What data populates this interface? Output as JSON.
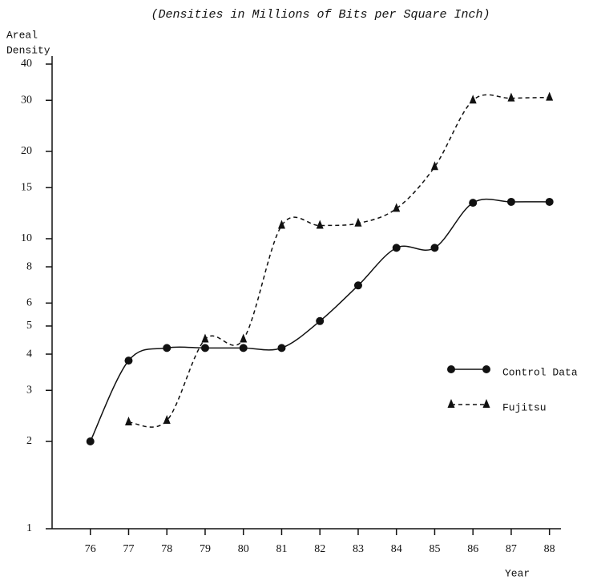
{
  "chart_data": {
    "type": "line",
    "title": "(Densities in Millions of Bits per Square Inch)",
    "y_label": [
      "Areal",
      "Density"
    ],
    "x_label": "Year",
    "x": [
      76,
      77,
      78,
      79,
      80,
      81,
      82,
      83,
      84,
      85,
      86,
      87,
      88
    ],
    "series": [
      {
        "name": "Control Data",
        "color": "#111111",
        "marker": "circle",
        "dash": false,
        "values": [
          2.0,
          3.8,
          4.2,
          4.2,
          4.2,
          4.2,
          5.2,
          6.9,
          9.3,
          9.3,
          13.3,
          13.4,
          13.4
        ]
      },
      {
        "name": "Fujitsu",
        "color": "#111111",
        "marker": "triangle",
        "dash": true,
        "values": [
          null,
          2.33,
          2.36,
          4.5,
          4.5,
          11.1,
          11.1,
          11.3,
          12.7,
          17.7,
          30,
          30.5,
          30.7
        ]
      }
    ],
    "xlim": [
      75,
      88.3
    ],
    "xticks": [
      76,
      77,
      78,
      79,
      80,
      81,
      82,
      83,
      84,
      85,
      86,
      87,
      88
    ],
    "ylim": [
      1,
      40
    ],
    "yticks": [
      1,
      2,
      3,
      4,
      5,
      6,
      8,
      10,
      15,
      20,
      30,
      40
    ],
    "log_y": true,
    "legend": "right"
  }
}
